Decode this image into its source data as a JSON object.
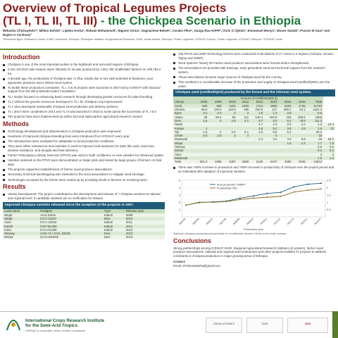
{
  "header": {
    "title_line1": "Overview of Tropical Legumes Projects",
    "title_line2_a": "(TL I, TL II, TL III)",
    "title_line2_b": " - the Chickpea Scenario in Ethiopia",
    "authors": "Mekasha Chichaybelu¹*, Million Eshete¹, Lijalem Korbu¹, Ridwan Mohammed¹, Nigusie Girma¹, Dagnachew Bekele¹, Asnake Fikre², Ganga Rao NVPR³, Chris O Ojiewo³, Emmanuel Monyo³, Moses Siambi³, Pooran M Gaur³ and Rajeev K Varshney³",
    "affiliations": "¹Debrezeit Agric. Research Center, EIAR, Debrezeit, Ethiopia; ²Ethiopian Institute of Agricultural Research, EIAR, Addis Ababa, Ethiopia; ³Grain Legumes, ICRISAT, Kenya; ⁴Grain Legumes, ICRISAT, Ethiopia; ⁵ICRISAT, India"
  },
  "intro": {
    "title": "Introduction",
    "bullets": [
      "Chickpea is one of the most important pulses in the highlands and semi-arid regions of Ethiopia.",
      "In the 2014/15 main season alone 458,682.31 ha was produced by 1,061,755 smallholder farmers on 239,753.4 ha.",
      "A decade ago, the productivity of chickpea was <1 t/ha, mainly due to low yield potential of landraces, poor agronomic practices and a limited seed system.",
      "To tackle these production constraints, TL I, II & III projects were launched in 2007 led by ICRISAT with financial support from the Bill & Melinda Gates Foundation.",
      "TL I mainly focused on enhancing basic research through developing genetic resources for plant breeding.",
      "TL II utilized the genetic resources developed in TL I for chickpea crop improvement.",
      "TL II also developed sustainable chickpea seed production and delivery systems.",
      "TL I and II were completed in 2014 and TL III was launched in 2015 to scale up/out the successes of TL I & II.",
      "The projects have been implemented by Debre Zeit and eight partner agricultural research centers."
    ]
  },
  "methods": {
    "title": "Methods",
    "bullets": [
      "Technology development and dissemination in chickpea production were improved.",
      "Hundreds of improved chickpea breeding lines were introduced from ICRISAT every year.",
      "The introductions were evaluated for adaptation to local production conditions.",
      "They were either released as new varieties or used to improve local landraces for traits like yield, seed size, disease resistance, and drought and heat tolerance.",
      "Farmer Participatory Variety Selection (FPVS) was used to build confidence on new varieties for enhanced uptake.",
      "Varieties selected on the FPVS were demonstrated on larger plots and visited by large groups of farmers on field days.",
      "The projects supported establishment of 'farmer seed producer associations'.",
      "Necessary technical backstopping was extended to the seed associations to mitigate seed shortage.",
      "Technologies accepted by the farmer were scaled up by providing seeds to farmers on revolving basis."
    ]
  },
  "results": {
    "title": "Results",
    "bullets": [
      "Variety Development: The project contributed to the development and release of 7 chickpea varieties at national and regional level. 5 candidate varieties are on verification for release."
    ]
  },
  "variety_table": {
    "title": "Improved chickpea varieties released since the inception of the projects in 2007.",
    "headers": [
      "Local name",
      "Pedigree",
      "Type",
      "Release year"
    ],
    "rows": [
      [
        "Minjar",
        "Acos Dubie",
        "Kabuli",
        "2009"
      ],
      [
        "Minjar",
        "ICCV 01107",
        "Desi",
        "2010"
      ],
      [
        "Akuri",
        "ICCV 03402",
        "Kabuli",
        "2011"
      ],
      [
        "Koboli",
        "FLIP 95-255",
        "Kabuli",
        "2011"
      ],
      [
        "Kobo",
        "ICCV-01308",
        "Kabuli",
        "2012"
      ],
      [
        "Teketay",
        "CAD-74 x ICCL 83105",
        "Desi",
        "2013"
      ],
      [
        "Dalota",
        "ICCX-940002",
        "Desi",
        "2013"
      ]
    ]
  },
  "right_top": {
    "bullets": [
      "136 FPVS and 2209 Technology Demos were conducted in 58 districts of 17 zones in 4 regions (Amhara, Oromia, Tigray and SNNP).",
      "Seed systems: Nearly 20 Farmer seed producer associations were formed and/or strengthened.",
      "The associations are provided with trainings, early generation seed and technical support from the research system.",
      "These associations became major sources of chickpea seed for the country.",
      "This resulted in a considerable increase of the production and supply of chickpea seed (certified/QDS) over the years."
    ]
  },
  "seed_table": {
    "title": "Chickpea seed (certified/QDS) produced by the formal and the informal seed system.",
    "subhead": "Amount of Certified/QDS (t)",
    "headers": [
      "Variety",
      "2008",
      "2009",
      "2010",
      "2011",
      "2012",
      "2013",
      "2014",
      "2015",
      "Total"
    ],
    "rows": [
      [
        "Arerti",
        "500",
        "859",
        "1192",
        "1283",
        "1714",
        "1900",
        "2620",
        "1726",
        "11794"
      ],
      [
        "Shasho",
        "88.5",
        "129.6",
        "120.8",
        "186",
        "230.6",
        "217",
        "396.7",
        "54.1",
        "1422.3"
      ],
      [
        "Ejere",
        "0.2",
        "0.3",
        "0",
        "3",
        "1.8",
        "1.3",
        "2.9",
        "",
        "9.5"
      ],
      [
        "Habru",
        "38",
        "69.4",
        "86",
        "111",
        "146.1",
        "194.9",
        "233",
        "208.6",
        "1069"
      ],
      [
        "Dere",
        "1.5",
        "2",
        "2.5",
        "4.1",
        "6.7",
        "9.3",
        "6.4",
        "78.6",
        "111.2"
      ],
      [
        "Natoli",
        "",
        "",
        "",
        "",
        "1.7",
        "2.3",
        "2.8",
        "4.4",
        "4.2",
        "15.4"
      ],
      [
        "Kutaye",
        "1",
        "",
        "",
        "",
        "3.6",
        "5.2",
        "3.8",
        "4.8",
        "1.6",
        "22"
      ],
      [
        "Teji",
        "1.5",
        "2",
        "2.5",
        "6.1",
        "4.9",
        "5.8",
        "6.4",
        "",
        "30.2"
      ],
      [
        "Chefe",
        "0.5",
        "2.5",
        "3",
        "4",
        "",
        "5",
        "",
        "",
        "15"
      ],
      [
        "Mastewal",
        "",
        "",
        "",
        "",
        "2.4",
        "3.3",
        "4.5",
        "8.8",
        "65",
        "84.2"
      ],
      [
        "Minjar",
        "",
        "",
        "",
        "",
        "",
        "",
        "1.8",
        "4.4",
        "1.7",
        "7.9"
      ],
      [
        "Teketay",
        "",
        "",
        "",
        "",
        "",
        "",
        "",
        "",
        "6.6",
        "6.6"
      ],
      [
        "Dalota",
        "",
        "",
        "",
        "",
        "",
        "",
        "",
        "",
        "8.2",
        "8.2"
      ],
      [
        "Akuri",
        "",
        "",
        "",
        "",
        "",
        "",
        "",
        "",
        "3",
        "3"
      ],
      [
        "Mastewal",
        "",
        "",
        "",
        "",
        "",
        "",
        "",
        "",
        "1.5",
        "1.5"
      ],
      [
        "Total",
        "631.2",
        "1065",
        "1387",
        "1608",
        "2126",
        "2347",
        "3290",
        "2159",
        "14612"
      ]
    ]
  },
  "right_mid": {
    "bullets": [
      "There was >60% increase in production and >50% increase in productivity of chickpea over the project period and an estimated 30% adoption of improved varieties."
    ]
  },
  "chart_data": {
    "type": "line",
    "x": [
      "2004/05",
      "2005/06",
      "2006/07",
      "2007/08",
      "2008/09",
      "2009/10",
      "2010/11",
      "2011/12",
      "2012/13",
      "2013/14",
      "2014/15"
    ],
    "series": [
      {
        "name": "Area production ’000MT",
        "values": [
          160,
          195,
          205,
          215,
          255,
          285,
          320,
          335,
          410,
          445,
          460
        ]
      },
      {
        "name": "Productivity T/ha",
        "values": [
          0.8,
          1.0,
          1.0,
          1.05,
          1.18,
          1.28,
          1.34,
          1.4,
          1.7,
          1.82,
          1.91
        ]
      }
    ],
    "xlabel": "Production year",
    "ylim_left": [
      0,
      5
    ],
    "ylim_right": [
      0,
      2.5
    ],
    "yticks_left": [
      "1",
      "2",
      "3",
      "4",
      "5"
    ],
    "yticks_right": [
      "0.5",
      "1",
      "1.5",
      "2",
      "2.5"
    ],
    "colors": {
      "area": "#1f5a7a",
      "productivity": "#8a6a1a"
    },
    "caption": "National chickpea production/productivity on smallholder farmers' fields in the main season."
  },
  "conclusions": {
    "title": "Conclusions",
    "text": "Strong partnerships among ICRISAT, EIAR, Regional Agricultural Research Institutes (9 centers), farmer seed producer associations, national and regional seed enterprises and other projects enabled TL projects to address constraints in chickpea production in major growing areas of Ethiopia."
  },
  "contact": {
    "label": "Contact:",
    "email": "Email: chichemekasha@gmail.com"
  },
  "footer": {
    "org_line1": "International Crops Research Institute",
    "org_line2": "for the Semi-Arid Tropics",
    "org_small": "ICRISAT is a member of the CGIAR Consortium",
    "logo_text": "ICRISAT",
    "badge1": "GRAIN LEGUMES",
    "badge2": "EIAR",
    "badge3": "2016"
  }
}
